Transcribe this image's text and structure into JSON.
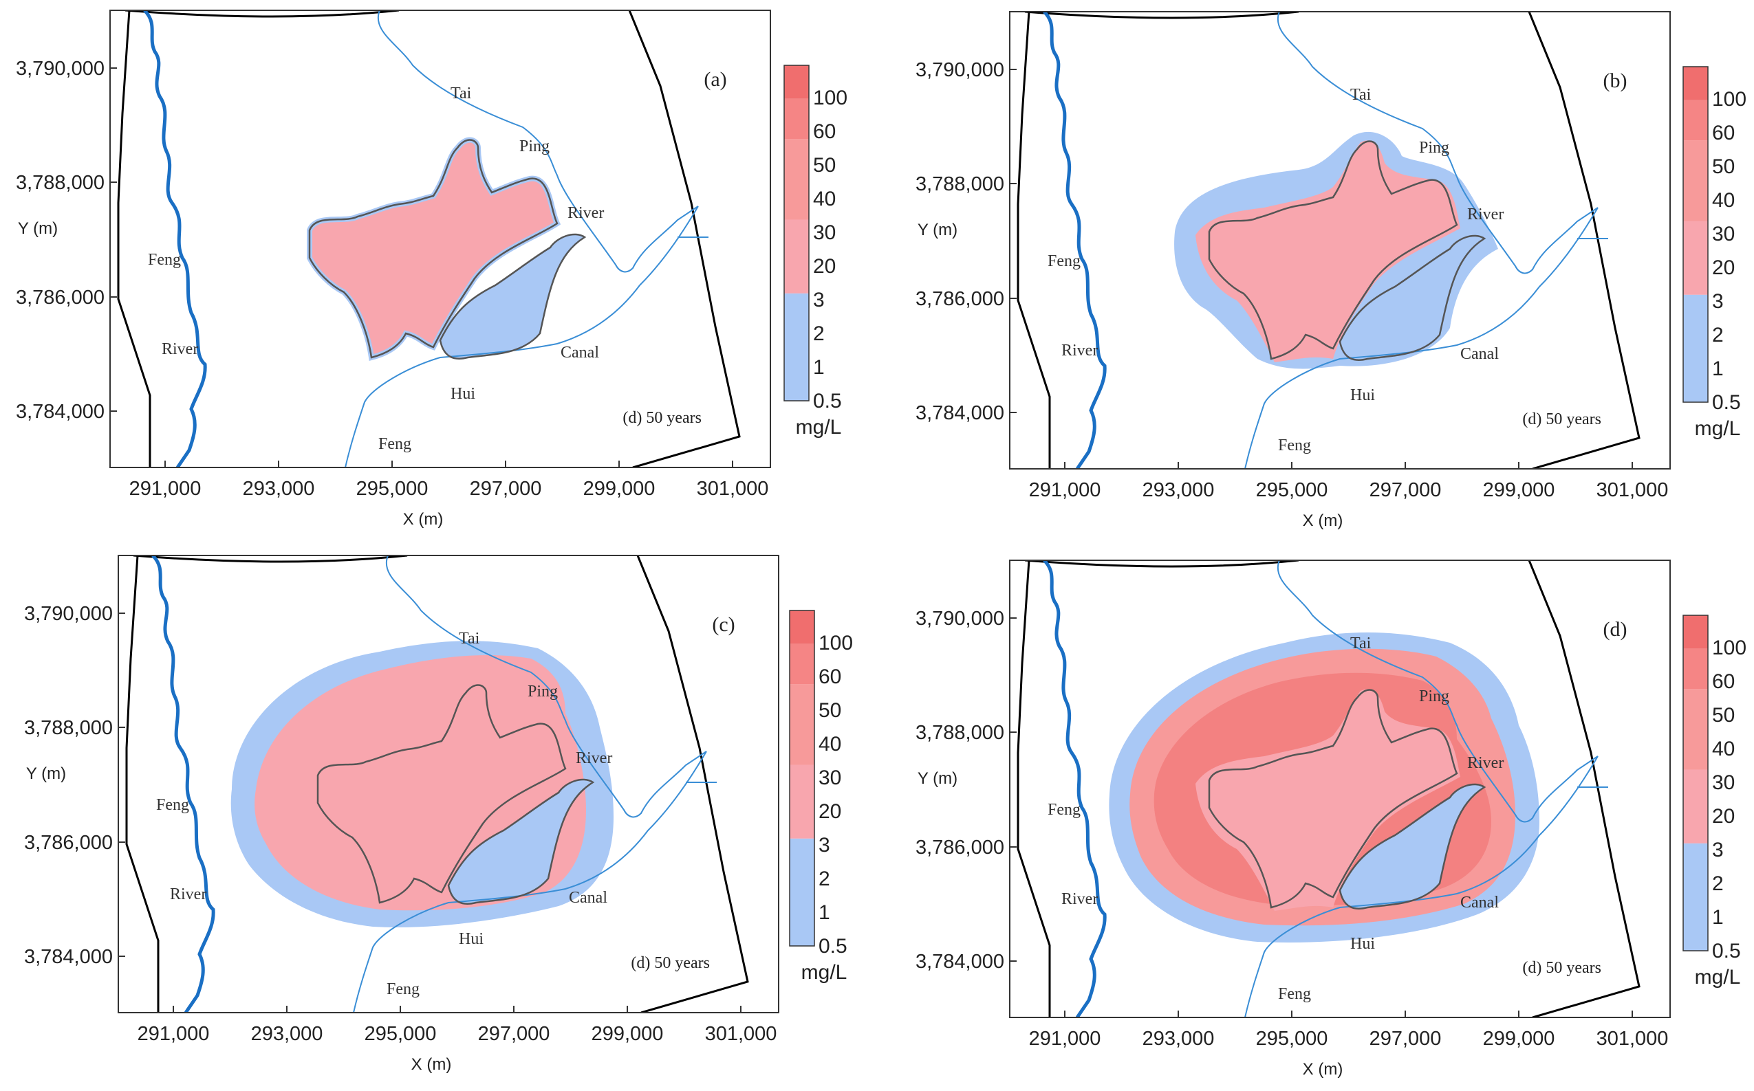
{
  "figure": {
    "x_axis_label": "X (m)",
    "y_axis_label": "Y (m)",
    "x_ticks": [
      "291,000",
      "293,000",
      "295,000",
      "297,000",
      "299,000",
      "301,000"
    ],
    "y_ticks": [
      "3,790,000",
      "3,788,000",
      "3,786,000",
      "3,784,000"
    ],
    "colorbar": {
      "unit": "mg/L",
      "tick_labels": [
        "100",
        "60",
        "50",
        "40",
        "30",
        "20",
        "3",
        "2",
        "1",
        "0.5"
      ],
      "colors": {
        "red_top": "#f06e6e",
        "red_high": "#f58585",
        "red_mid": "#f79a9a",
        "red_low": "#f8a6ae",
        "blue": "#a9c8f5"
      }
    },
    "map_labels": {
      "tai": "Tai",
      "ping": "Ping",
      "river_east": "River",
      "feng_west": "Feng",
      "river_west": "River",
      "hui": "Hui",
      "canal": "Canal",
      "feng_south": "Feng"
    },
    "colors": {
      "major_river": "#1a6fc4",
      "minor_river": "#3a8ed6",
      "boundary": "#000000",
      "pond_outline": "#555555"
    },
    "panels": [
      {
        "label": "(a)",
        "time": "(d) 50 years"
      },
      {
        "label": "(b)",
        "time": "(d) 50 years"
      },
      {
        "label": "(c)",
        "time": "(d) 50 years"
      },
      {
        "label": "(d)",
        "time": "(d) 50 years"
      }
    ]
  }
}
